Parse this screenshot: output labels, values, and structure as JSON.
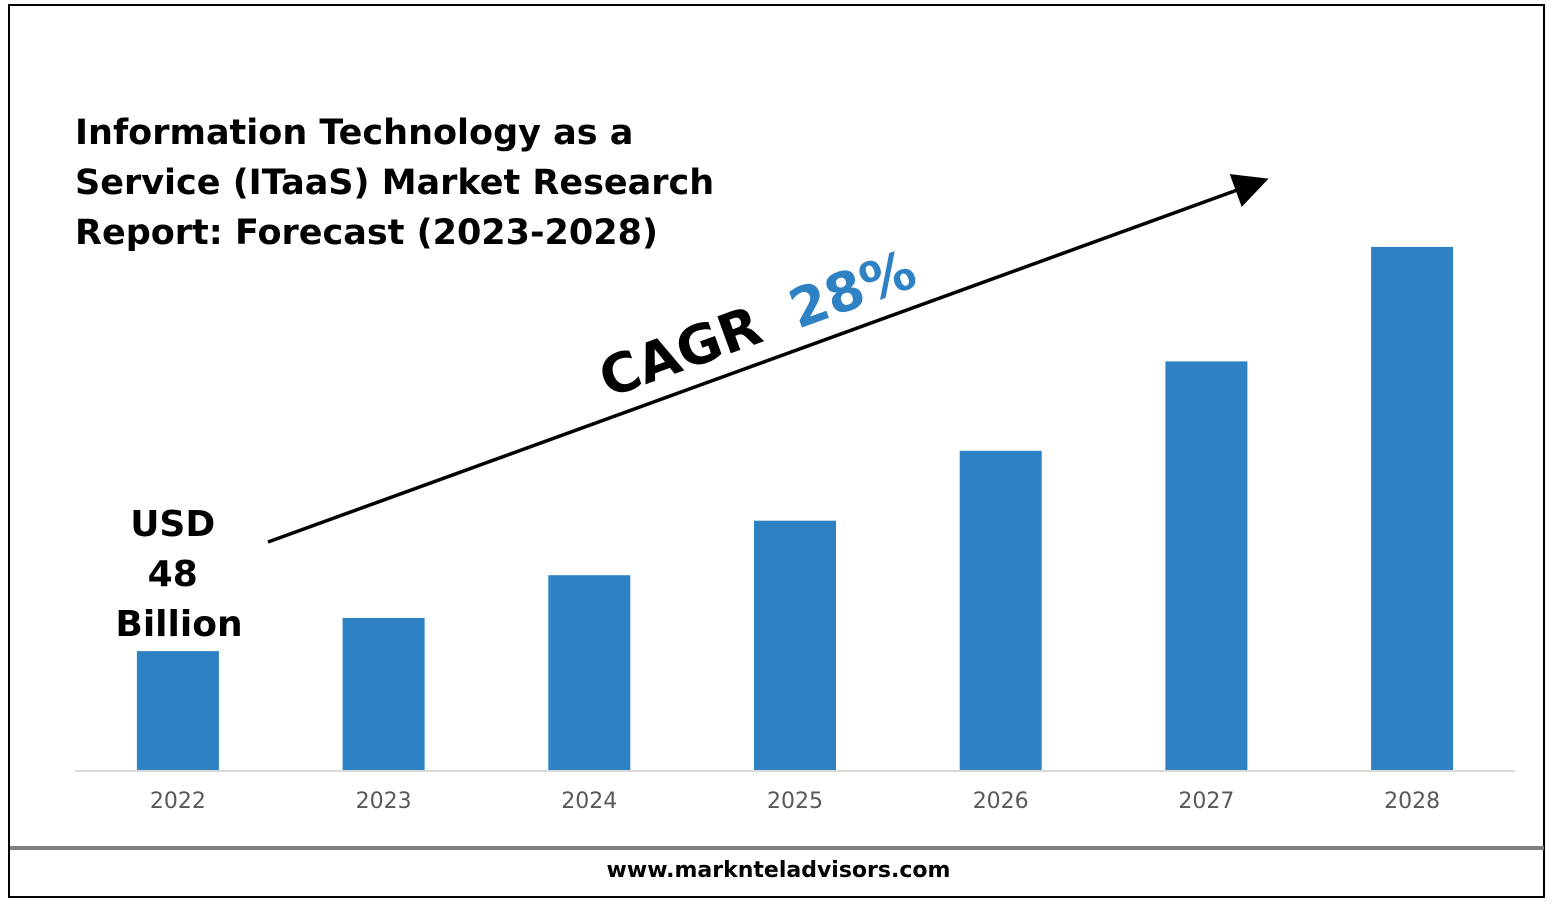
{
  "chart_data": {
    "type": "bar",
    "title": "Information Technology as a Service (ITaaS) Market Research Report: Forecast (2023-2028)",
    "categories": [
      "2022",
      "2023",
      "2024",
      "2025",
      "2026",
      "2027",
      "2028"
    ],
    "values": [
      48,
      61.4,
      78.6,
      100.6,
      128.8,
      164.9,
      211.1
    ],
    "xlabel": "",
    "ylabel": "",
    "ylim": [
      0,
      226
    ],
    "bar_color": "#2e81c3",
    "grid": false,
    "legend": "none",
    "annotations": {
      "start_value_lines": [
        "USD",
        "48",
        "Billion"
      ],
      "cagr_label": "CAGR",
      "cagr_value": "28%",
      "cagr_value_color": "#2e81c3"
    }
  },
  "footer": {
    "url": "www.marknteladvisors.com"
  }
}
